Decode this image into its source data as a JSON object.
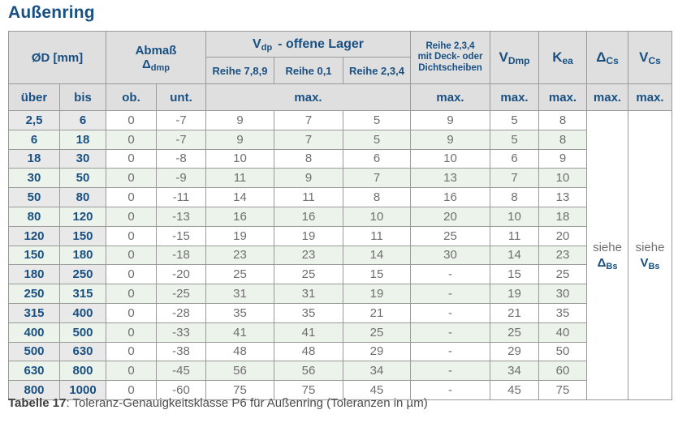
{
  "page": {
    "title": "Außenring",
    "caption": {
      "label": "Tabelle 17",
      "text": ": Toleranz-Genauigkeitsklasse P6 für Außenring (Toleranzen in µm)"
    }
  },
  "colors": {
    "accent_blue": "#185083",
    "header_bg": "#dfdfdf",
    "label_column_bg": "#e9e9e9",
    "stripe_green": "#ecf3eb",
    "value_text_gray": "#6f6f6f",
    "border_gray": "#9a9a9a"
  },
  "table": {
    "header": {
      "diameter": "ØD  [mm]",
      "abmass_line1": "Abmaß",
      "abmass_symbol": "Δ",
      "abmass_subscript": "dmp",
      "vdp_symbol": "V",
      "vdp_subscript": "dp",
      "vdp_rest": "-  offene Lager",
      "vdp_series": [
        "Reihe 7,8,9",
        "Reihe 0,1",
        "Reihe 2,3,4"
      ],
      "deck_lines": [
        "Reihe 2,3,4",
        "mit Deck- oder",
        "Dichtscheiben"
      ],
      "vdmp_symbol": "V",
      "vdmp_subscript": "Dmp",
      "kea_symbol": "K",
      "kea_subscript": "ea",
      "dcs_symbol": "Δ",
      "dcs_subscript": "Cs",
      "vcs_symbol": "V",
      "vcs_subscript": "Cs",
      "sub_labels": {
        "ueber": "über",
        "bis": "bis",
        "ob": "ob.",
        "unt": "unt.",
        "max": "max."
      }
    },
    "see_references": {
      "dcs": {
        "word": "siehe",
        "symbol": "Δ",
        "subscript": "Bs"
      },
      "vcs": {
        "word": "siehe",
        "symbol": "V",
        "subscript": "Bs"
      }
    },
    "rows": [
      [
        "2,5",
        "6",
        "0",
        "-7",
        "9",
        "7",
        "5",
        "9",
        "5",
        "8"
      ],
      [
        "6",
        "18",
        "0",
        "-7",
        "9",
        "7",
        "5",
        "9",
        "5",
        "8"
      ],
      [
        "18",
        "30",
        "0",
        "-8",
        "10",
        "8",
        "6",
        "10",
        "6",
        "9"
      ],
      [
        "30",
        "50",
        "0",
        "-9",
        "11",
        "9",
        "7",
        "13",
        "7",
        "10"
      ],
      [
        "50",
        "80",
        "0",
        "-11",
        "14",
        "11",
        "8",
        "16",
        "8",
        "13"
      ],
      [
        "80",
        "120",
        "0",
        "-13",
        "16",
        "16",
        "10",
        "20",
        "10",
        "18"
      ],
      [
        "120",
        "150",
        "0",
        "-15",
        "19",
        "19",
        "11",
        "25",
        "11",
        "20"
      ],
      [
        "150",
        "180",
        "0",
        "-18",
        "23",
        "23",
        "14",
        "30",
        "14",
        "23"
      ],
      [
        "180",
        "250",
        "0",
        "-20",
        "25",
        "25",
        "15",
        "-",
        "15",
        "25"
      ],
      [
        "250",
        "315",
        "0",
        "-25",
        "31",
        "31",
        "19",
        "-",
        "19",
        "30"
      ],
      [
        "315",
        "400",
        "0",
        "-28",
        "35",
        "35",
        "21",
        "-",
        "21",
        "35"
      ],
      [
        "400",
        "500",
        "0",
        "-33",
        "41",
        "41",
        "25",
        "-",
        "25",
        "40"
      ],
      [
        "500",
        "630",
        "0",
        "-38",
        "48",
        "48",
        "29",
        "-",
        "29",
        "50"
      ],
      [
        "630",
        "800",
        "0",
        "-45",
        "56",
        "56",
        "34",
        "-",
        "34",
        "60"
      ],
      [
        "800",
        "1000",
        "0",
        "-60",
        "75",
        "75",
        "45",
        "-",
        "45",
        "75"
      ]
    ]
  }
}
